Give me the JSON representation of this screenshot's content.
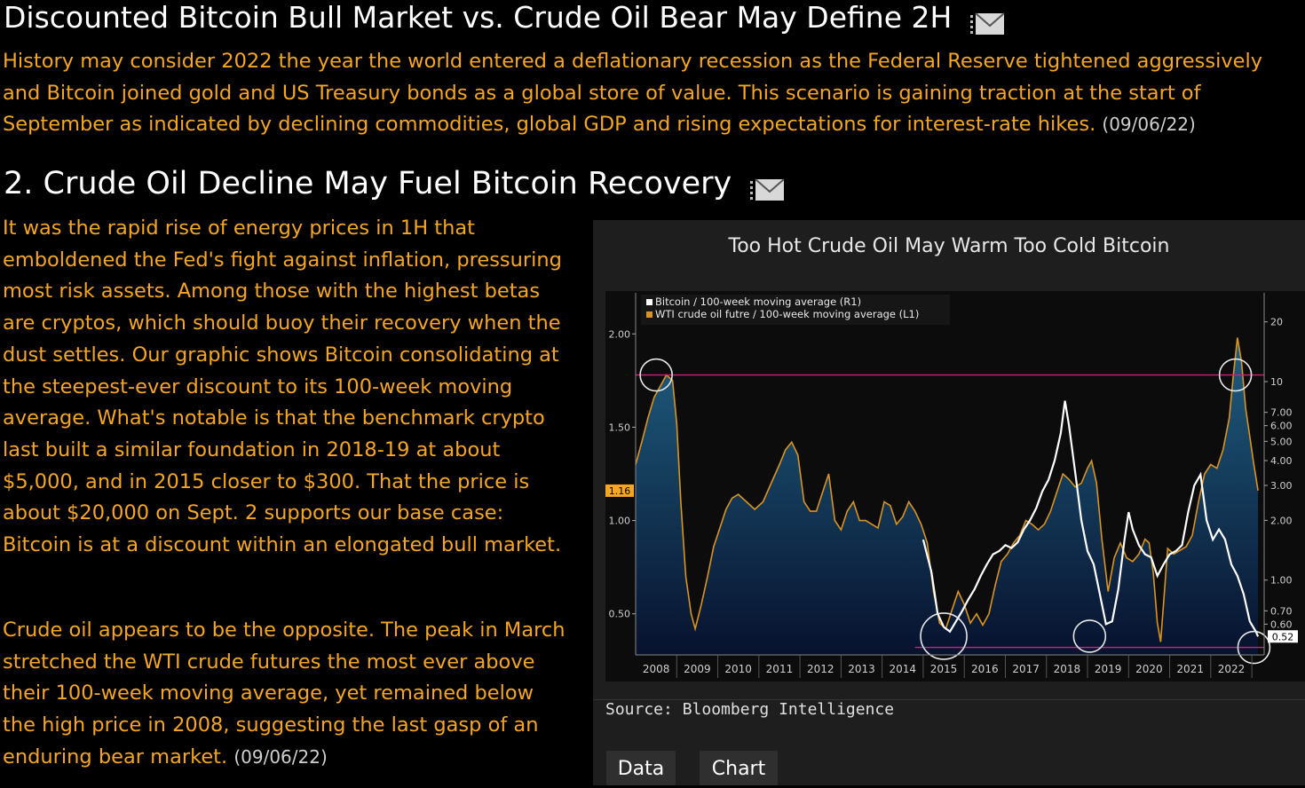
{
  "section1": {
    "title": "Discounted Bitcoin Bull Market vs. Crude Oil Bear May Define 2H",
    "body": "History may consider 2022 the year the world entered a deflationary recession as the Federal Reserve tightened aggressively and Bitcoin joined gold and US Treasury bonds as a global store of value. This scenario is gaining traction at the start of September as indicated by declining commodities, global GDP and rising expectations for interest-rate hikes.",
    "date": "(09/06/22)"
  },
  "section2": {
    "title": "2. Crude Oil Decline May Fuel Bitcoin Recovery",
    "body1": "It was the rapid rise of energy prices in 1H that emboldened the Fed's fight against inflation, pressuring most risk assets. Among those with the highest betas are cryptos, which should buoy their recovery when the dust settles. Our graphic shows Bitcoin consolidating at the steepest-ever discount to its 100-week moving average. What's notable is that the benchmark crypto last built a similar foundation in 2018-19 at about $5,000, and in 2015 closer to $300. That the price is about $20,000 on Sept. 2 supports our base case: Bitcoin is at a discount within an elongated bull market.",
    "body2": "Crude oil appears to be the opposite. The peak in March stretched the WTI crude futures the most ever above their 100-week moving average, yet remained below the high price in 2008, suggesting the last gasp of an enduring bear market.",
    "date": "(09/06/22)"
  },
  "icons": {
    "mail": "mail-icon"
  },
  "chart_panel": {
    "title": "Too Hot Crude Oil May Warm Too Cold Bitcoin",
    "source": "Source: Bloomberg Intelligence",
    "buttons": {
      "data": "Data",
      "chart": "Chart"
    }
  },
  "chart_data": {
    "type": "line",
    "title": "Too Hot Crude Oil May Warm Too Cold Bitcoin",
    "x_tick_labels": [
      "2008",
      "2009",
      "2010",
      "2011",
      "2012",
      "2013",
      "2014",
      "2015",
      "2016",
      "2017",
      "2018",
      "2019",
      "2020",
      "2021",
      "2022"
    ],
    "xlim": [
      2007.5,
      2022.8
    ],
    "left_axis": {
      "ticks": [
        "2.00",
        "1.50",
        "1.00",
        "0.50"
      ],
      "tick_values": [
        2.0,
        1.5,
        1.0,
        0.5
      ],
      "ylim": [
        0.28,
        2.22
      ],
      "current_label": "1.16"
    },
    "right_axis": {
      "scale": "log",
      "ticks": [
        "20",
        "10",
        "7.00",
        "6.00",
        "5.00",
        "4.00",
        "3.00",
        "2.00",
        "1.00",
        "0.70",
        "0.60"
      ],
      "tick_values": [
        20,
        10,
        7,
        6,
        5,
        4,
        3,
        2,
        1,
        0.7,
        0.6
      ],
      "ylim": [
        0.42,
        28
      ],
      "current_label": "0.52"
    },
    "colors": {
      "bitcoin": "#ffffff",
      "oil": "#d9951e",
      "area_top": "#1f5e80",
      "area_bottom": "#07122e",
      "hline": "#d0207a"
    },
    "series": [
      {
        "name": "WTI crude oil futre / 100-week moving average (L1)",
        "axis": "left",
        "x": [
          2007.5,
          2007.65,
          2007.8,
          2007.95,
          2008.1,
          2008.25,
          2008.4,
          2008.5,
          2008.6,
          2008.72,
          2008.85,
          2008.95,
          2009.1,
          2009.25,
          2009.4,
          2009.55,
          2009.7,
          2009.85,
          2010.0,
          2010.2,
          2010.4,
          2010.6,
          2010.8,
          2011.0,
          2011.15,
          2011.3,
          2011.45,
          2011.6,
          2011.75,
          2011.9,
          2012.05,
          2012.2,
          2012.35,
          2012.5,
          2012.65,
          2012.8,
          2012.95,
          2013.1,
          2013.25,
          2013.4,
          2013.55,
          2013.7,
          2013.85,
          2014.0,
          2014.15,
          2014.3,
          2014.45,
          2014.6,
          2014.75,
          2014.9,
          2015.05,
          2015.2,
          2015.35,
          2015.5,
          2015.65,
          2015.8,
          2015.95,
          2016.1,
          2016.25,
          2016.4,
          2016.55,
          2016.7,
          2016.85,
          2017.0,
          2017.15,
          2017.3,
          2017.45,
          2017.6,
          2017.75,
          2017.9,
          2018.05,
          2018.2,
          2018.35,
          2018.5,
          2018.6,
          2018.72,
          2018.85,
          2019.0,
          2019.15,
          2019.3,
          2019.45,
          2019.6,
          2019.75,
          2019.9,
          2020.0,
          2020.1,
          2020.2,
          2020.28,
          2020.35,
          2020.45,
          2020.6,
          2020.75,
          2020.9,
          2021.05,
          2021.2,
          2021.35,
          2021.5,
          2021.65,
          2021.8,
          2021.95,
          2022.05,
          2022.15,
          2022.25,
          2022.35,
          2022.45,
          2022.55,
          2022.65
        ],
        "y": [
          1.3,
          1.42,
          1.55,
          1.66,
          1.72,
          1.78,
          1.75,
          1.52,
          1.1,
          0.7,
          0.5,
          0.42,
          0.55,
          0.7,
          0.86,
          0.96,
          1.06,
          1.12,
          1.14,
          1.1,
          1.06,
          1.1,
          1.2,
          1.3,
          1.38,
          1.42,
          1.35,
          1.1,
          1.05,
          1.05,
          1.15,
          1.25,
          1.0,
          0.95,
          1.05,
          1.1,
          1.0,
          1.0,
          0.98,
          0.96,
          1.1,
          1.08,
          0.98,
          1.02,
          1.1,
          1.05,
          0.98,
          0.88,
          0.62,
          0.45,
          0.42,
          0.52,
          0.62,
          0.55,
          0.45,
          0.5,
          0.44,
          0.5,
          0.65,
          0.78,
          0.82,
          0.88,
          0.92,
          1.0,
          0.98,
          0.95,
          0.98,
          1.05,
          1.15,
          1.25,
          1.22,
          1.18,
          1.2,
          1.28,
          1.32,
          1.2,
          0.9,
          0.62,
          0.8,
          0.88,
          0.8,
          0.78,
          0.82,
          0.9,
          0.88,
          0.72,
          0.45,
          0.35,
          0.55,
          0.85,
          0.82,
          0.84,
          0.86,
          0.92,
          1.1,
          1.25,
          1.3,
          1.28,
          1.38,
          1.55,
          1.78,
          1.98,
          1.85,
          1.6,
          1.45,
          1.3,
          1.16
        ]
      },
      {
        "name": "Bitcoin / 100-week moving average (R1)",
        "axis": "right",
        "x": [
          2014.5,
          2014.7,
          2014.85,
          2015.0,
          2015.15,
          2015.3,
          2015.45,
          2015.6,
          2015.75,
          2015.9,
          2016.05,
          2016.2,
          2016.35,
          2016.5,
          2016.65,
          2016.8,
          2016.95,
          2017.1,
          2017.25,
          2017.4,
          2017.55,
          2017.7,
          2017.85,
          2017.95,
          2018.05,
          2018.2,
          2018.35,
          2018.5,
          2018.65,
          2018.8,
          2018.95,
          2019.1,
          2019.25,
          2019.4,
          2019.5,
          2019.6,
          2019.75,
          2019.9,
          2020.05,
          2020.2,
          2020.35,
          2020.5,
          2020.65,
          2020.8,
          2020.95,
          2021.1,
          2021.25,
          2021.4,
          2021.55,
          2021.7,
          2021.85,
          2022.0,
          2022.15,
          2022.3,
          2022.45,
          2022.6,
          2022.65
        ],
        "y": [
          1.6,
          1.1,
          0.68,
          0.58,
          0.55,
          0.62,
          0.7,
          0.8,
          0.9,
          1.05,
          1.2,
          1.35,
          1.4,
          1.5,
          1.45,
          1.55,
          1.8,
          2.0,
          2.3,
          2.8,
          3.2,
          4.0,
          5.5,
          8.0,
          6.0,
          3.5,
          2.0,
          1.4,
          1.2,
          0.85,
          0.6,
          0.62,
          0.9,
          1.6,
          2.2,
          1.8,
          1.5,
          1.35,
          1.3,
          1.05,
          1.2,
          1.35,
          1.4,
          1.5,
          2.2,
          3.0,
          3.4,
          2.0,
          1.6,
          1.8,
          1.6,
          1.2,
          1.05,
          0.85,
          0.62,
          0.55,
          0.52
        ]
      }
    ],
    "reference_lines": {
      "upper_left_value": 1.78,
      "lower_left_value": 0.32
    },
    "circled_years": [
      2008.0,
      2015.0,
      2018.55,
      2022.1,
      2022.55
    ],
    "legend": {
      "placement": "top-left"
    }
  }
}
